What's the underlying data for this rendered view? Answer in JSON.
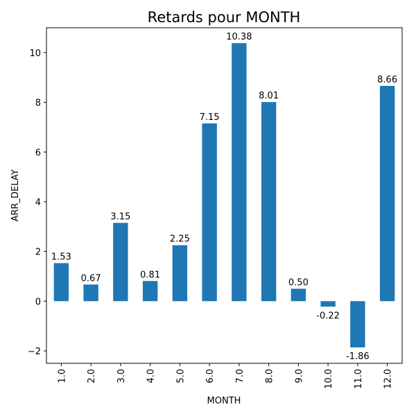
{
  "chart_data": {
    "type": "bar",
    "title": "Retards pour MONTH",
    "xlabel": "MONTH",
    "ylabel": "ARR_DELAY",
    "categories": [
      "1.0",
      "2.0",
      "3.0",
      "4.0",
      "5.0",
      "6.0",
      "7.0",
      "8.0",
      "9.0",
      "10.0",
      "11.0",
      "12.0"
    ],
    "values": [
      1.53,
      0.67,
      3.15,
      0.81,
      2.25,
      7.15,
      10.38,
      8.01,
      0.5,
      -0.22,
      -1.86,
      8.66
    ],
    "data_labels": [
      "1.53",
      "0.67",
      "3.15",
      "0.81",
      "2.25",
      "7.15",
      "10.38",
      "8.01",
      "0.50",
      "-0.22",
      "-1.86",
      "8.66"
    ],
    "ylim": [
      -2.5,
      11.0
    ],
    "yticks": [
      -2,
      0,
      2,
      4,
      6,
      8,
      10
    ],
    "ytick_labels": [
      "−2",
      "0",
      "2",
      "4",
      "6",
      "8",
      "10"
    ],
    "grid": false,
    "legend": false,
    "bar_color": "#1f77b4"
  }
}
